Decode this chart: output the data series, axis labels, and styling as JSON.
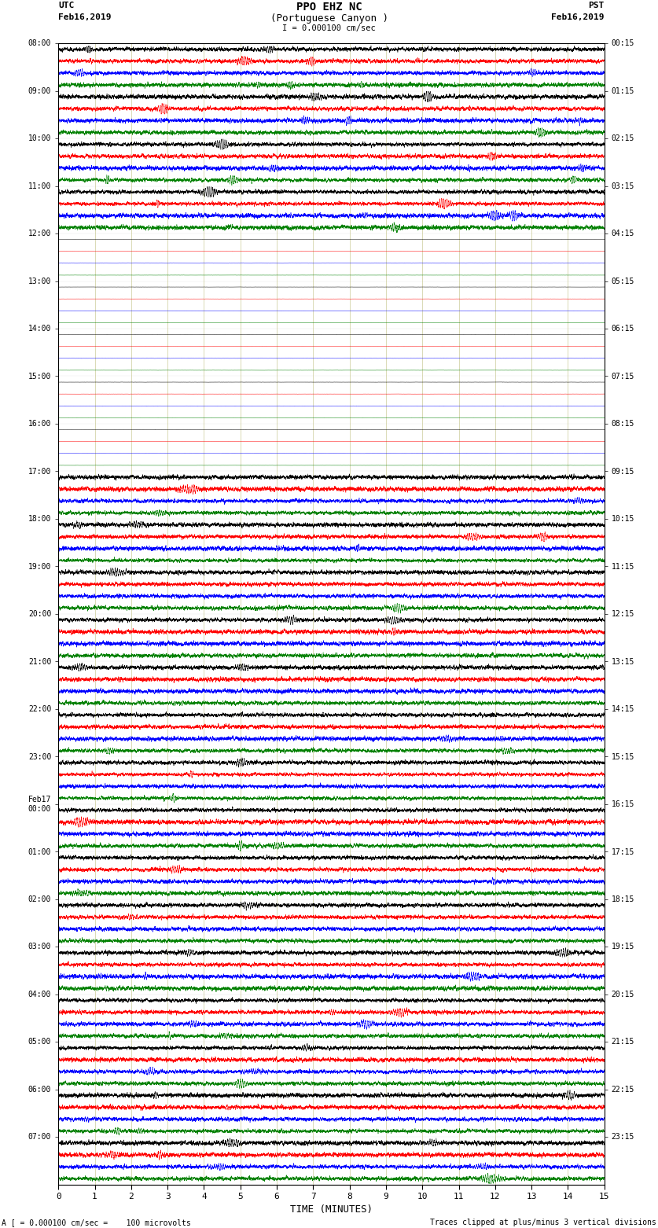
{
  "title_line1": "PPO EHZ NC",
  "title_line2": "(Portuguese Canyon )",
  "title_line3": "I = 0.000100 cm/sec",
  "label_utc": "UTC",
  "label_pst": "PST",
  "label_date_left": "Feb16,2019",
  "label_date_right": "Feb16,2019",
  "xlabel": "TIME (MINUTES)",
  "footer_left": "A [ = 0.000100 cm/sec =    100 microvolts",
  "footer_right": "Traces clipped at plus/minus 3 vertical divisions",
  "left_times": [
    "08:00",
    "09:00",
    "10:00",
    "11:00",
    "12:00",
    "13:00",
    "14:00",
    "15:00",
    "16:00",
    "17:00",
    "18:00",
    "19:00",
    "20:00",
    "21:00",
    "22:00",
    "23:00",
    "Feb17\n00:00",
    "01:00",
    "02:00",
    "03:00",
    "04:00",
    "05:00",
    "06:00",
    "07:00"
  ],
  "right_times": [
    "00:15",
    "01:15",
    "02:15",
    "03:15",
    "04:15",
    "05:15",
    "06:15",
    "07:15",
    "08:15",
    "09:15",
    "10:15",
    "11:15",
    "12:15",
    "13:15",
    "14:15",
    "15:15",
    "16:15",
    "17:15",
    "18:15",
    "19:15",
    "20:15",
    "21:15",
    "22:15",
    "23:15"
  ],
  "colors": [
    "black",
    "red",
    "blue",
    "green"
  ],
  "bg_color": "#ffffff",
  "n_rows": 24,
  "traces_per_row": 4,
  "xticks": [
    0,
    1,
    2,
    3,
    4,
    5,
    6,
    7,
    8,
    9,
    10,
    11,
    12,
    13,
    14,
    15
  ],
  "xmin": 0,
  "xmax": 15,
  "quiet_rows": [
    4,
    5,
    6,
    7,
    8
  ],
  "active_amp": 0.3,
  "quiet_amp": 0.01,
  "lw": 0.35
}
